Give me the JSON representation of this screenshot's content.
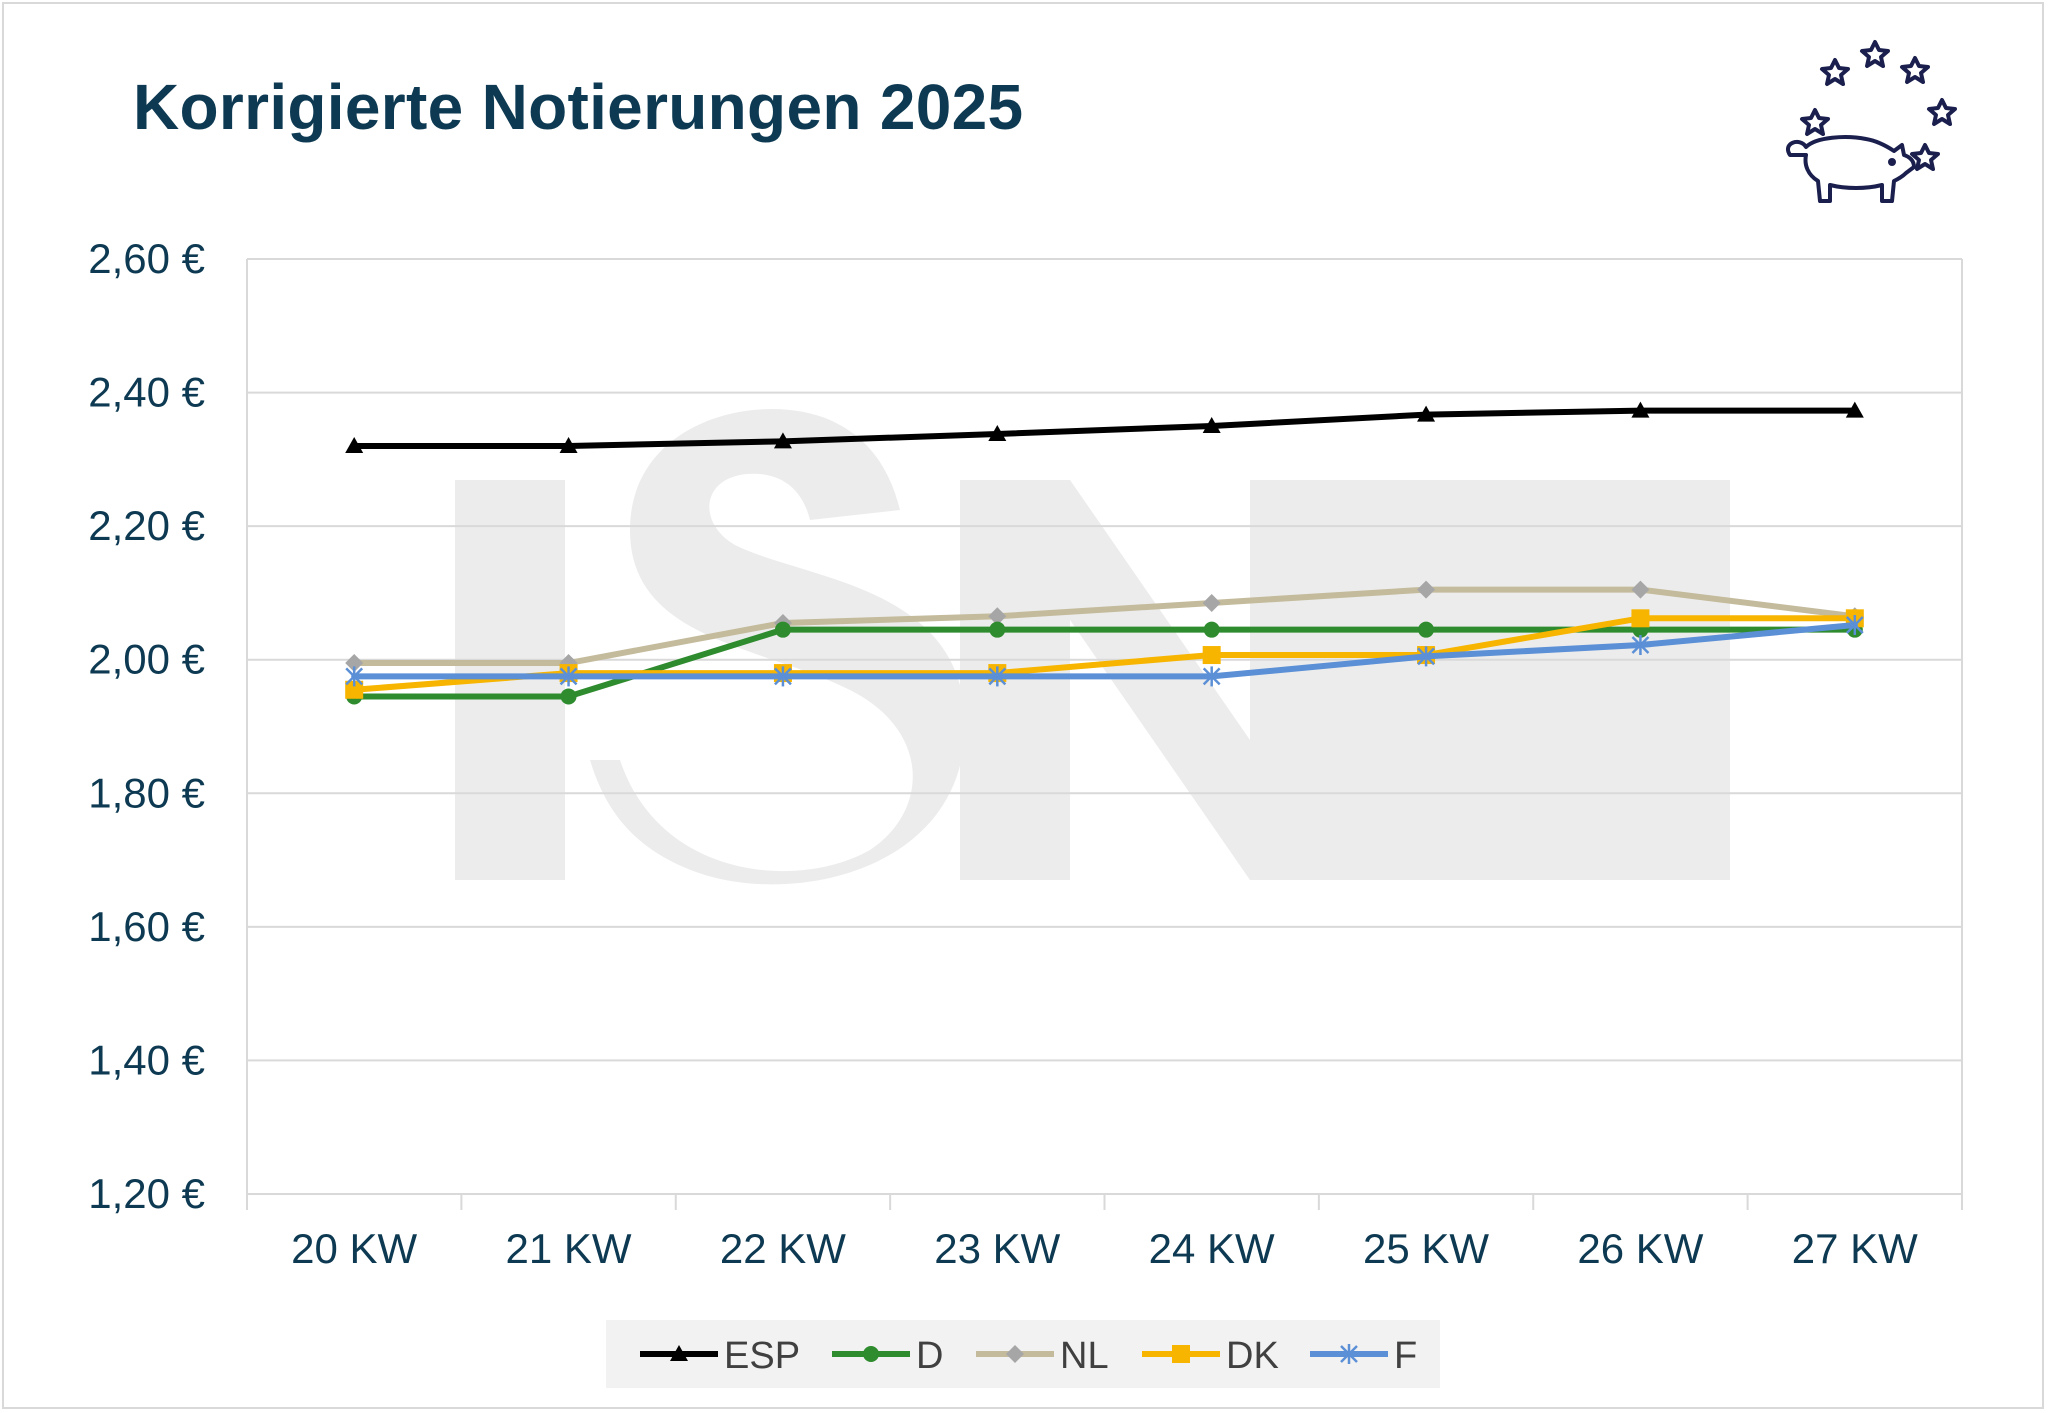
{
  "title": "Korrigierte Notierungen 2025",
  "chart_data": {
    "type": "line",
    "title": "Korrigierte Notierungen 2025",
    "xlabel": "",
    "ylabel": "",
    "categories": [
      "20 KW",
      "21 KW",
      "22 KW",
      "23 KW",
      "24 KW",
      "25 KW",
      "26 KW",
      "27 KW"
    ],
    "ylim": [
      1.2,
      2.6
    ],
    "yticks": [
      1.2,
      1.4,
      1.6,
      1.8,
      2.0,
      2.2,
      2.4,
      2.6
    ],
    "ytick_labels": [
      "1,20 €",
      "1,40 €",
      "1,60 €",
      "1,80 €",
      "2,00 €",
      "2,20 €",
      "2,40 €",
      "2,60 €"
    ],
    "grid": "horizontal",
    "legend_position": "bottom",
    "series": [
      {
        "name": "ESP",
        "color": "#000000",
        "marker": "triangle",
        "values": [
          2.32,
          2.32,
          2.327,
          2.338,
          2.35,
          2.367,
          2.373,
          2.373
        ]
      },
      {
        "name": "D",
        "color": "#2e8b2e",
        "marker": "circle",
        "values": [
          1.945,
          1.945,
          2.045,
          2.045,
          2.045,
          2.045,
          2.045,
          2.045
        ]
      },
      {
        "name": "NL",
        "color": "#c4bb9c",
        "marker": "diamond",
        "values": [
          1.995,
          1.995,
          2.055,
          2.065,
          2.085,
          2.105,
          2.105,
          2.065
        ]
      },
      {
        "name": "DK",
        "color": "#f7b500",
        "marker": "square",
        "values": [
          1.955,
          1.98,
          1.98,
          1.98,
          2.007,
          2.007,
          2.062,
          2.062
        ]
      },
      {
        "name": "F",
        "color": "#5b8fd6",
        "marker": "star",
        "values": [
          1.975,
          1.975,
          1.975,
          1.975,
          1.975,
          2.005,
          2.022,
          2.052
        ]
      }
    ]
  }
}
